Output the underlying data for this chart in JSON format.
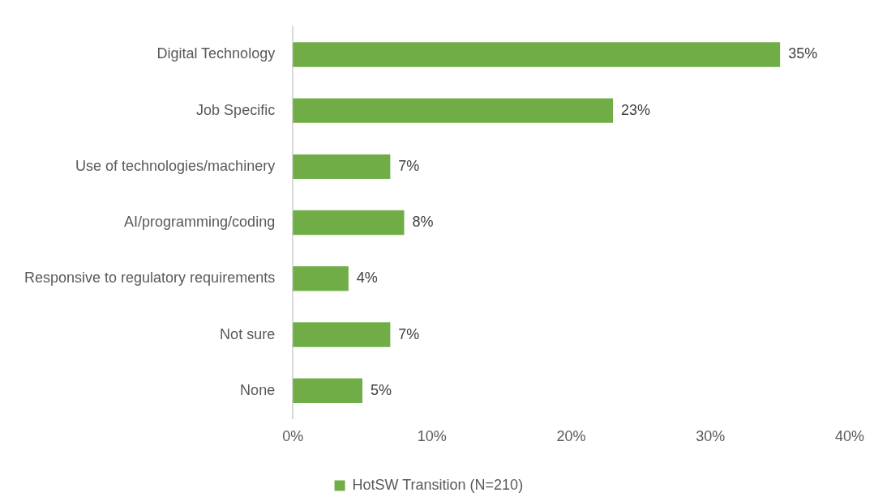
{
  "chart_data": {
    "type": "bar",
    "orientation": "horizontal",
    "categories": [
      "Digital Technology",
      "Job Specific",
      "Use of technologies/machinery",
      "AI/programming/coding",
      "Responsive to regulatory requirements",
      "Not sure",
      "None"
    ],
    "series": [
      {
        "name": "HotSW Transition (N=210)",
        "color": "#70ad47",
        "values": [
          35,
          23,
          7,
          8,
          4,
          7,
          5
        ],
        "value_labels": [
          "35%",
          "23%",
          "7%",
          "8%",
          "4%",
          "7%",
          "5%"
        ]
      }
    ],
    "xlim": [
      0,
      40
    ],
    "xticks": [
      {
        "value": 0,
        "label": "0%"
      },
      {
        "value": 10,
        "label": "10%"
      },
      {
        "value": 20,
        "label": "20%"
      },
      {
        "value": 30,
        "label": "30%"
      },
      {
        "value": 40,
        "label": "40%"
      }
    ],
    "legend": "bottom"
  }
}
